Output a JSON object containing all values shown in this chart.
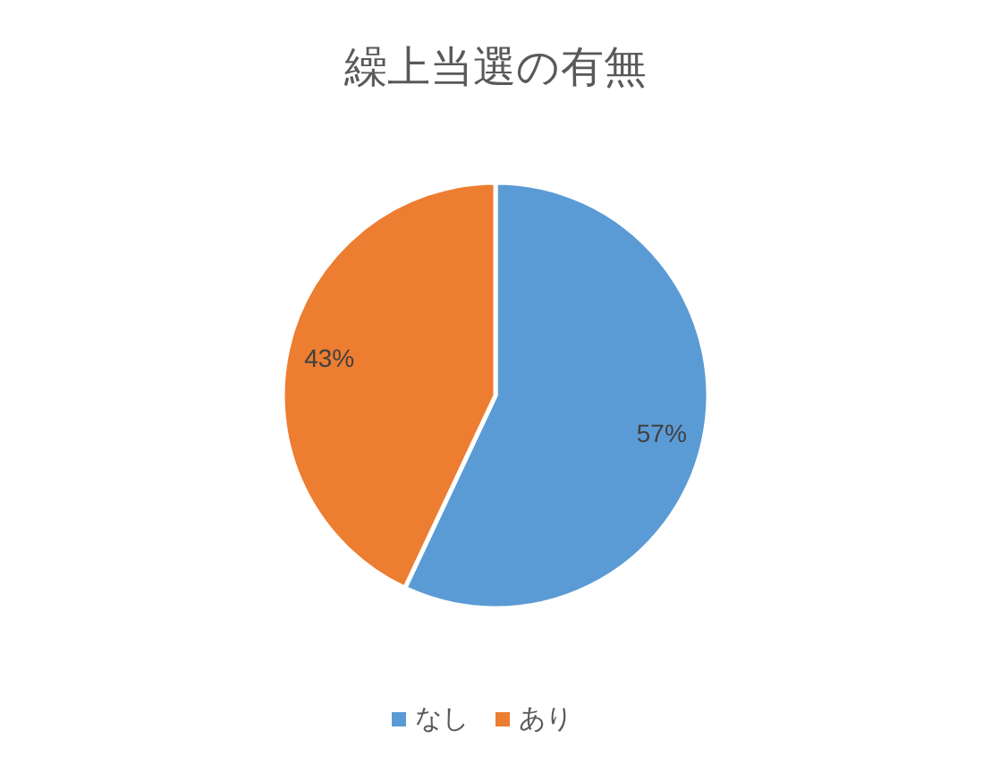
{
  "chart_data": {
    "type": "pie",
    "title": "繰上当選の有無",
    "categories": [
      "なし",
      "あり"
    ],
    "values": [
      57,
      43
    ],
    "colors": [
      "#5b9bd5",
      "#ed7d31"
    ],
    "value_labels": [
      "57%",
      "43%"
    ],
    "legend": "bottom"
  }
}
